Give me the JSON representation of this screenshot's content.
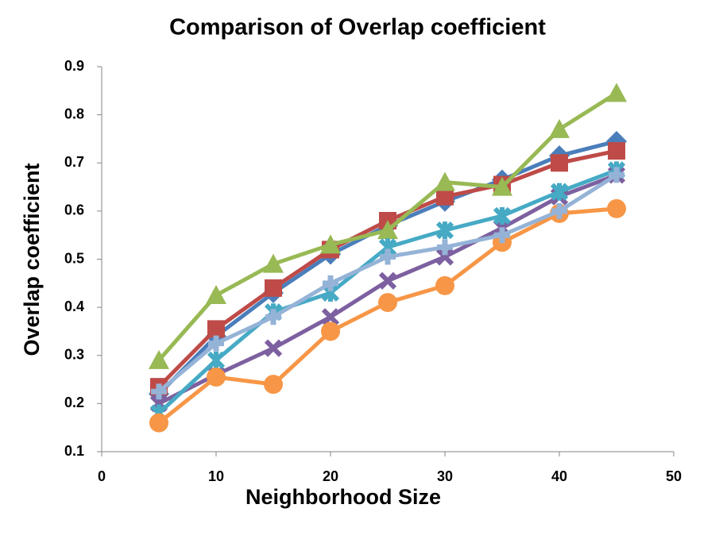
{
  "chart_data": {
    "type": "line",
    "title": "Comparison of Overlap coefficient",
    "x_label": "Neighborhood Size",
    "y_label": "Overlap coefficient",
    "x": [
      5,
      10,
      15,
      20,
      25,
      30,
      35,
      40,
      45
    ],
    "xlim": [
      0,
      50
    ],
    "xticks": [
      0,
      10,
      20,
      30,
      40,
      50
    ],
    "ylim": [
      0.1,
      0.9
    ],
    "yticks": [
      0.1,
      0.2,
      0.3,
      0.4,
      0.5,
      0.6,
      0.7,
      0.8,
      0.9
    ],
    "grid": false,
    "series": [
      {
        "color": "#4a7ebb",
        "marker": "diamond",
        "values": [
          0.22,
          0.34,
          0.43,
          0.51,
          0.57,
          0.62,
          0.665,
          0.715,
          0.745
        ]
      },
      {
        "color": "#be4b48",
        "marker": "square",
        "values": [
          0.235,
          0.355,
          0.44,
          0.52,
          0.58,
          0.63,
          0.655,
          0.7,
          0.725
        ]
      },
      {
        "color": "#98b954",
        "marker": "triangle",
        "values": [
          0.29,
          0.425,
          0.49,
          0.53,
          0.56,
          0.66,
          0.65,
          0.77,
          0.845
        ]
      },
      {
        "color": "#7d60a0",
        "marker": "x",
        "values": [
          0.2,
          0.26,
          0.315,
          0.38,
          0.455,
          0.505,
          0.565,
          0.63,
          0.675
        ]
      },
      {
        "color": "#46aac5",
        "marker": "star",
        "values": [
          0.18,
          0.29,
          0.39,
          0.43,
          0.525,
          0.56,
          0.59,
          0.64,
          0.685
        ]
      },
      {
        "color": "#f79646",
        "marker": "circle",
        "values": [
          0.16,
          0.255,
          0.24,
          0.35,
          0.41,
          0.445,
          0.535,
          0.595,
          0.605
        ]
      },
      {
        "color": "#95b3d7",
        "marker": "plus",
        "values": [
          0.225,
          0.325,
          0.38,
          0.45,
          0.505,
          0.525,
          0.55,
          0.6,
          0.675
        ]
      }
    ]
  }
}
